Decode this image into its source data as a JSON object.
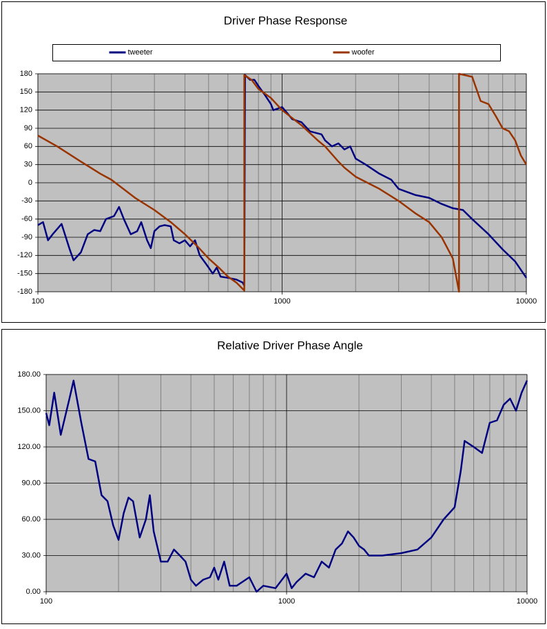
{
  "chart_data": [
    {
      "type": "line",
      "title": "Driver Phase Response",
      "log_x": true,
      "legend": "top",
      "grid": true,
      "xlim": [
        100,
        10000
      ],
      "xticks": [
        100,
        1000,
        10000
      ],
      "ylim": [
        -180,
        180
      ],
      "yticks": [
        -180,
        -150,
        -120,
        -90,
        -60,
        -30,
        0,
        30,
        60,
        90,
        120,
        150,
        180
      ],
      "series": [
        {
          "name": "tweeter",
          "color": "#000080",
          "x": [
            100,
            105,
            110,
            115,
            125,
            135,
            140,
            150,
            160,
            170,
            180,
            190,
            205,
            215,
            225,
            240,
            255,
            265,
            280,
            290,
            300,
            315,
            330,
            350,
            360,
            380,
            400,
            420,
            440,
            460,
            480,
            500,
            520,
            540,
            560,
            600,
            650,
            690,
            700,
            705,
            740,
            770,
            800,
            850,
            900,
            920,
            1000,
            1050,
            1100,
            1200,
            1300,
            1450,
            1500,
            1600,
            1700,
            1800,
            1900,
            2000,
            2200,
            2500,
            2800,
            3000,
            3500,
            4000,
            4500,
            5000,
            5500,
            6000,
            7000,
            8000,
            9000,
            10000
          ],
          "values": [
            -70,
            -65,
            -95,
            -85,
            -68,
            -110,
            -128,
            -115,
            -85,
            -78,
            -80,
            -60,
            -55,
            -40,
            -60,
            -85,
            -80,
            -65,
            -95,
            -108,
            -80,
            -72,
            -70,
            -72,
            -95,
            -100,
            -95,
            -105,
            -95,
            -120,
            -130,
            -140,
            -150,
            -140,
            -155,
            -157,
            -160,
            -165,
            -170,
            178,
            170,
            170,
            160,
            145,
            130,
            120,
            125,
            115,
            105,
            100,
            85,
            80,
            70,
            60,
            65,
            55,
            60,
            40,
            30,
            15,
            5,
            -10,
            -20,
            -25,
            -35,
            -42,
            -45,
            -60,
            -85,
            -110,
            -130,
            -157
          ]
        },
        {
          "name": "woofer",
          "color": "#993300",
          "x": [
            100,
            120,
            150,
            180,
            200,
            250,
            300,
            350,
            400,
            450,
            500,
            550,
            600,
            650,
            700,
            700,
            750,
            800,
            900,
            1000,
            1200,
            1400,
            1500,
            1700,
            1800,
            2000,
            2500,
            3000,
            3500,
            4000,
            4500,
            5000,
            5300,
            5300,
            6000,
            6500,
            7000,
            7500,
            8000,
            8500,
            9000,
            9500,
            10000
          ],
          "values": [
            78,
            60,
            35,
            15,
            5,
            -25,
            -45,
            -65,
            -85,
            -105,
            -125,
            -140,
            -155,
            -165,
            -178,
            178,
            170,
            155,
            140,
            120,
            95,
            70,
            60,
            35,
            25,
            10,
            -10,
            -30,
            -50,
            -65,
            -90,
            -125,
            -180,
            180,
            175,
            135,
            130,
            110,
            90,
            85,
            70,
            45,
            30
          ]
        }
      ]
    },
    {
      "type": "line",
      "title": "Relative Driver Phase Angle",
      "log_x": true,
      "grid": true,
      "xlim": [
        100,
        10000
      ],
      "xticks": [
        100,
        1000,
        10000
      ],
      "ylim": [
        0,
        180
      ],
      "yticks": [
        {
          "value": 0,
          "label": "0.00"
        },
        {
          "value": 30,
          "label": "30.00"
        },
        {
          "value": 60,
          "label": "60.00"
        },
        {
          "value": 90,
          "label": "90.00"
        },
        {
          "value": 120,
          "label": "120.00"
        },
        {
          "value": 150,
          "label": "150.00"
        },
        {
          "value": 180,
          "label": "180.00"
        }
      ],
      "color": "#000080",
      "x": [
        100,
        103,
        108,
        115,
        125,
        130,
        140,
        150,
        160,
        170,
        180,
        190,
        200,
        210,
        220,
        230,
        245,
        260,
        270,
        280,
        300,
        320,
        340,
        360,
        380,
        400,
        420,
        450,
        480,
        500,
        520,
        550,
        580,
        620,
        700,
        750,
        800,
        900,
        1000,
        1050,
        1100,
        1200,
        1300,
        1400,
        1500,
        1600,
        1700,
        1800,
        1900,
        2000,
        2100,
        2200,
        2500,
        3000,
        3500,
        4000,
        4500,
        5000,
        5300,
        5500,
        6000,
        6500,
        7000,
        7500,
        8000,
        8500,
        9000,
        9500,
        10000
      ],
      "values": [
        148,
        138,
        165,
        130,
        160,
        175,
        140,
        110,
        108,
        80,
        75,
        55,
        43,
        65,
        78,
        75,
        45,
        60,
        80,
        50,
        25,
        25,
        35,
        30,
        25,
        10,
        5,
        10,
        12,
        20,
        10,
        25,
        5,
        5,
        12,
        0,
        5,
        3,
        15,
        3,
        8,
        15,
        12,
        25,
        20,
        35,
        40,
        50,
        45,
        38,
        35,
        30,
        30,
        32,
        35,
        45,
        60,
        70,
        100,
        125,
        120,
        115,
        140,
        142,
        155,
        160,
        150,
        165,
        175
      ]
    }
  ]
}
